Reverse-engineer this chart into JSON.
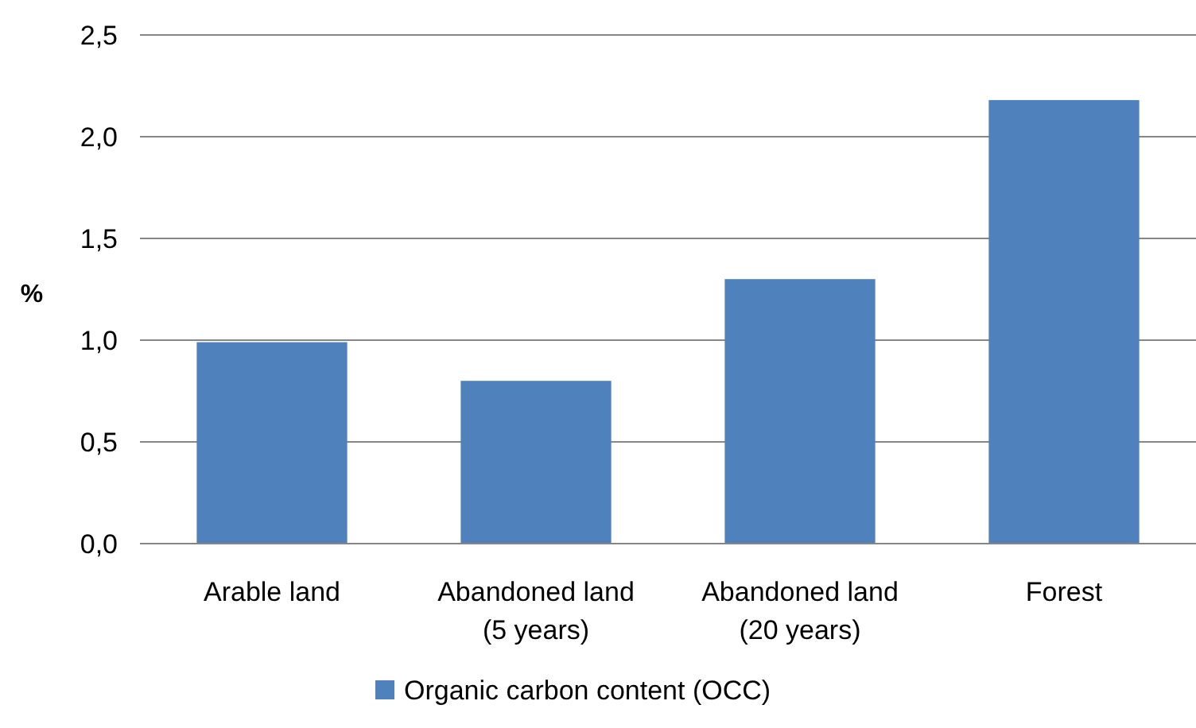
{
  "chart_data": {
    "type": "bar",
    "ylabel": "%",
    "categories": [
      "Arable land",
      "Abandoned land (5 years)",
      "Abandoned land (20 years)",
      "Forest"
    ],
    "series": [
      {
        "name": "Organic carbon content (OCC)",
        "color": "#4f81bd",
        "values": [
          0.99,
          0.8,
          1.3,
          2.18
        ]
      }
    ],
    "ylim": [
      0,
      2.5
    ],
    "yticks": [
      {
        "value": 0,
        "label": "0,0"
      },
      {
        "value": 0.5,
        "label": "0,5"
      },
      {
        "value": 1,
        "label": "1,0"
      },
      {
        "value": 1.5,
        "label": "1,5"
      },
      {
        "value": 2,
        "label": "2,0"
      },
      {
        "value": 2.5,
        "label": "2,5"
      }
    ],
    "grid": "y",
    "legend": "bottom"
  }
}
